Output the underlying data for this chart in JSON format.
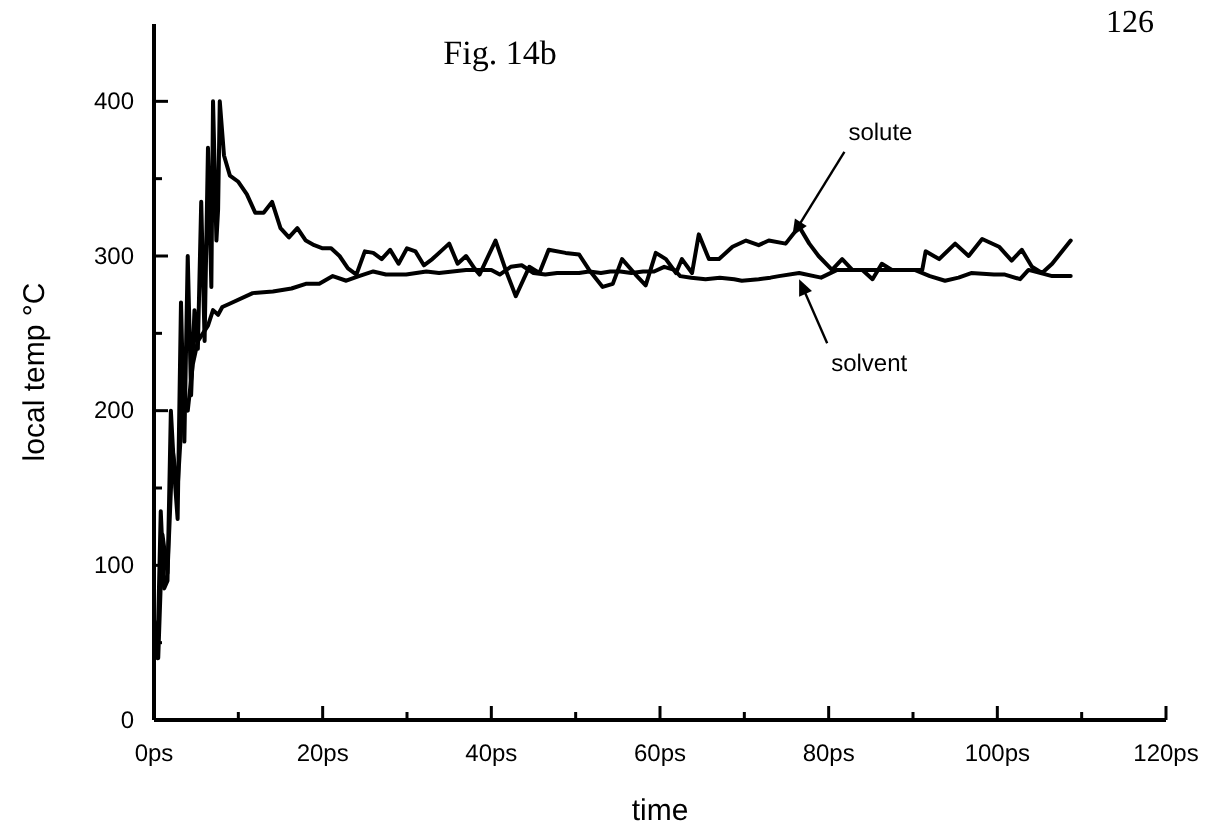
{
  "chart_data": {
    "type": "line",
    "title": "Fig. 14b",
    "xlabel": "time",
    "ylabel": "local temp °C",
    "xlim": [
      0,
      120
    ],
    "xticks": [
      {
        "value": 0,
        "label": "0ps"
      },
      {
        "value": 10,
        "label": null
      },
      {
        "value": 20,
        "label": "20ps"
      },
      {
        "value": 30,
        "label": null
      },
      {
        "value": 40,
        "label": "40ps"
      },
      {
        "value": 50,
        "label": null
      },
      {
        "value": 60,
        "label": "60ps"
      },
      {
        "value": 70,
        "label": null
      },
      {
        "value": 80,
        "label": "80ps"
      },
      {
        "value": 90,
        "label": null
      },
      {
        "value": 100,
        "label": "100ps"
      },
      {
        "value": 110,
        "label": null
      },
      {
        "value": 120,
        "label": "120ps"
      }
    ],
    "ylim": [
      0,
      450
    ],
    "yticks": [
      0,
      {
        "value": 50,
        "label": null
      },
      100,
      {
        "value": 150,
        "label": null
      },
      200,
      {
        "value": 250,
        "label": null
      },
      300,
      {
        "value": 350,
        "label": null
      },
      400
    ],
    "grid": false,
    "marker": "none",
    "line_style": "solid",
    "annotations": [
      "126",
      {
        "text": "solute",
        "x": 75.7,
        "y": 313
      },
      {
        "text": "solvent",
        "x": 76.5,
        "y": 285
      }
    ],
    "series": [
      {
        "color": "#000000",
        "x": [
          0,
          0.4,
          0.8,
          1.2,
          1.6,
          2,
          2.4,
          2.8,
          3.2,
          3.6,
          4,
          4.4,
          4.8,
          5.2,
          5.6,
          6,
          6.4,
          6.8,
          7,
          7.4,
          7.6,
          7.8,
          8.3,
          9,
          10,
          11,
          12,
          13,
          14,
          15,
          16,
          17,
          18,
          19,
          20,
          21,
          22,
          23,
          24,
          25,
          26,
          27,
          28,
          29,
          30,
          31,
          32,
          33,
          34,
          35,
          36,
          37,
          38,
          38.6,
          40.5,
          41.7,
          42.9,
          44.5,
          45.7,
          46.8,
          48.8,
          50.4,
          51.6,
          53.2,
          54.4,
          55.5,
          57.1,
          58.3,
          59.5,
          60.7,
          61.9,
          62.6,
          63.8,
          64.6,
          65.8,
          67,
          68.6,
          70.2,
          71.7,
          72.9,
          74.9,
          76.5,
          77.7,
          78.8,
          80.4,
          81.6,
          82.8,
          84,
          85.2,
          86.3,
          87.5,
          89.1,
          91.1,
          91.5,
          93.1,
          95,
          96.6,
          98.2,
          100.2,
          101.7,
          102.9,
          104.1,
          105.3,
          106.5,
          108.7
        ],
        "values": [
          65,
          40,
          135,
          85,
          90,
          200,
          160,
          130,
          270,
          180,
          300,
          210,
          265,
          240,
          335,
          245,
          370,
          280,
          400,
          310,
          330,
          400,
          365,
          352,
          348,
          340,
          328,
          328,
          335,
          318,
          312,
          318,
          310,
          307,
          305,
          305,
          300,
          292,
          288,
          303,
          302,
          298,
          304,
          295,
          305,
          303,
          294,
          298,
          303,
          308,
          295,
          300,
          292,
          288,
          310,
          291,
          274,
          293,
          289,
          304,
          302,
          301,
          291,
          280,
          282,
          298,
          288,
          281,
          302,
          298,
          289,
          298,
          289,
          314,
          298,
          298,
          306,
          310,
          307,
          310,
          308,
          319,
          308,
          300,
          291,
          298,
          291,
          291,
          285,
          295,
          291,
          291,
          291,
          303,
          298,
          308,
          300,
          311,
          306,
          297,
          304,
          293,
          289,
          295,
          310
        ]
      },
      {
        "color": "#000000",
        "x": [
          0,
          0.5,
          1,
          1.6,
          2.2,
          2.8,
          3.4,
          4,
          4.6,
          5.2,
          5.8,
          6.4,
          7,
          7.6,
          8.1,
          8.9,
          11.7,
          14.1,
          16.3,
          18,
          19.6,
          21.2,
          22.8,
          24.3,
          26,
          27.5,
          29.9,
          32.3,
          33.8,
          37,
          40,
          41,
          42.3,
          43.6,
          45,
          46.4,
          47.8,
          49.2,
          50.4,
          51.6,
          53,
          54.1,
          55.3,
          56.6,
          58,
          59.3,
          60.5,
          61.7,
          62.4,
          63.7,
          65.4,
          67.1,
          68.8,
          69.7,
          71.7,
          73.1,
          74.1,
          76.5,
          79.1,
          81,
          84,
          87.5,
          90.2,
          92,
          93.8,
          95.4,
          96.9,
          99.6,
          100.9,
          102.7,
          103.7,
          106.5,
          108.7
        ],
        "values": [
          60,
          40,
          120,
          95,
          175,
          150,
          205,
          200,
          230,
          245,
          250,
          255,
          265,
          262,
          267,
          269,
          276,
          277,
          279,
          282,
          282,
          287,
          284,
          287,
          290,
          288,
          288,
          290,
          289,
          291,
          291,
          288,
          293,
          294,
          289,
          288,
          289,
          289,
          289,
          290,
          289,
          290,
          290,
          289,
          290,
          290,
          293,
          291,
          287,
          286,
          285,
          286,
          285,
          284,
          285,
          286,
          287,
          289,
          286,
          291,
          291,
          291,
          291,
          287,
          284,
          286,
          289,
          288,
          288,
          285,
          291,
          287,
          287
        ]
      }
    ]
  }
}
